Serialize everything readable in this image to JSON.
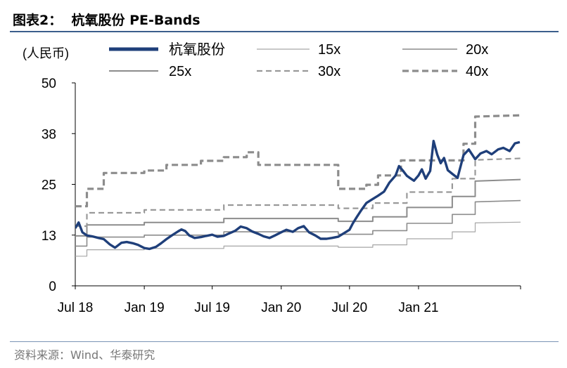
{
  "header": {
    "title": "图表2：  杭氧股份 PE-Bands"
  },
  "footer": {
    "source": "资料来源：Wind、华泰研究"
  },
  "chart_data": {
    "type": "line",
    "ylabel": "(人民币)",
    "ylim": [
      0,
      50
    ],
    "yticks": [
      "0",
      "13",
      "25",
      "38",
      "50"
    ],
    "ytick_values": [
      0,
      12.5,
      25,
      37.5,
      50
    ],
    "xlim": [
      "2018-07-01",
      "2021-09-30"
    ],
    "xticks": [
      "Jul 18",
      "Jan 19",
      "Jul 19",
      "Jan 20",
      "Jul 20",
      "Jan 21"
    ],
    "xtick_dates": [
      "2018-07-01",
      "2019-01-01",
      "2019-07-01",
      "2020-01-01",
      "2020-07-01",
      "2021-01-01"
    ],
    "legend": [
      "杭氧股份",
      "15x",
      "20x",
      "25x",
      "30x",
      "40x"
    ],
    "legend_placement": "top",
    "grid": false,
    "series": [
      {
        "name": "杭氧股份",
        "style": "thick-solid",
        "color": "#1f3f7a",
        "points": [
          [
            "2018-07-01",
            14.2
          ],
          [
            "2018-07-10",
            15.6
          ],
          [
            "2018-07-20",
            13.2
          ],
          [
            "2018-08-01",
            12.4
          ],
          [
            "2018-08-15",
            12.2
          ],
          [
            "2018-09-01",
            11.8
          ],
          [
            "2018-09-15",
            11.5
          ],
          [
            "2018-10-01",
            10.2
          ],
          [
            "2018-10-15",
            9.4
          ],
          [
            "2018-11-01",
            10.6
          ],
          [
            "2018-11-15",
            10.8
          ],
          [
            "2018-12-01",
            10.5
          ],
          [
            "2018-12-15",
            10.1
          ],
          [
            "2019-01-01",
            9.3
          ],
          [
            "2019-01-15",
            9.1
          ],
          [
            "2019-02-01",
            9.6
          ],
          [
            "2019-02-15",
            10.5
          ],
          [
            "2019-03-01",
            11.5
          ],
          [
            "2019-03-15",
            12.4
          ],
          [
            "2019-04-01",
            13.4
          ],
          [
            "2019-04-10",
            13.9
          ],
          [
            "2019-04-20",
            13.5
          ],
          [
            "2019-05-01",
            12.4
          ],
          [
            "2019-05-15",
            11.8
          ],
          [
            "2019-06-01",
            12.0
          ],
          [
            "2019-06-15",
            12.3
          ],
          [
            "2019-07-01",
            12.6
          ],
          [
            "2019-07-15",
            12.1
          ],
          [
            "2019-08-01",
            12.3
          ],
          [
            "2019-08-15",
            12.9
          ],
          [
            "2019-09-01",
            13.6
          ],
          [
            "2019-09-15",
            14.6
          ],
          [
            "2019-10-01",
            14.2
          ],
          [
            "2019-10-15",
            13.4
          ],
          [
            "2019-11-01",
            12.8
          ],
          [
            "2019-11-15",
            12.2
          ],
          [
            "2019-12-01",
            11.8
          ],
          [
            "2019-12-15",
            12.4
          ],
          [
            "2020-01-01",
            13.2
          ],
          [
            "2020-01-15",
            13.8
          ],
          [
            "2020-02-01",
            13.3
          ],
          [
            "2020-02-15",
            14.2
          ],
          [
            "2020-03-01",
            14.7
          ],
          [
            "2020-03-15",
            13.2
          ],
          [
            "2020-04-01",
            12.4
          ],
          [
            "2020-04-15",
            11.6
          ],
          [
            "2020-05-01",
            11.6
          ],
          [
            "2020-05-15",
            11.8
          ],
          [
            "2020-06-01",
            12.1
          ],
          [
            "2020-06-15",
            12.9
          ],
          [
            "2020-07-01",
            13.8
          ],
          [
            "2020-07-10",
            15.4
          ],
          [
            "2020-07-20",
            16.9
          ],
          [
            "2020-08-01",
            18.6
          ],
          [
            "2020-08-15",
            20.4
          ],
          [
            "2020-09-01",
            21.4
          ],
          [
            "2020-09-15",
            22.2
          ],
          [
            "2020-10-01",
            23.2
          ],
          [
            "2020-10-15",
            25.4
          ],
          [
            "2020-11-01",
            27.2
          ],
          [
            "2020-11-10",
            29.5
          ],
          [
            "2020-11-20",
            28.4
          ],
          [
            "2020-12-01",
            27.1
          ],
          [
            "2020-12-10",
            26.5
          ],
          [
            "2020-12-20",
            25.9
          ],
          [
            "2021-01-01",
            27.2
          ],
          [
            "2021-01-10",
            28.7
          ],
          [
            "2021-01-20",
            26.4
          ],
          [
            "2021-02-01",
            28.3
          ],
          [
            "2021-02-10",
            35.7
          ],
          [
            "2021-02-20",
            32.3
          ],
          [
            "2021-03-01",
            30.2
          ],
          [
            "2021-03-10",
            31.5
          ],
          [
            "2021-03-20",
            28.5
          ],
          [
            "2021-04-01",
            27.6
          ],
          [
            "2021-04-15",
            26.6
          ],
          [
            "2021-05-01",
            32.2
          ],
          [
            "2021-05-15",
            33.6
          ],
          [
            "2021-06-01",
            31.2
          ],
          [
            "2021-06-15",
            32.6
          ],
          [
            "2021-07-01",
            33.2
          ],
          [
            "2021-07-15",
            32.4
          ],
          [
            "2021-08-01",
            33.6
          ],
          [
            "2021-08-15",
            34.0
          ],
          [
            "2021-09-01",
            33.2
          ],
          [
            "2021-09-15",
            35.1
          ],
          [
            "2021-09-28",
            35.4
          ]
        ]
      },
      {
        "name": "15x",
        "style": "thin-solid",
        "color": "#a6a6a6",
        "points": [
          [
            "2018-07-01",
            7.3
          ],
          [
            "2018-08-01",
            7.3
          ],
          [
            "2018-08-01",
            8.9
          ],
          [
            "2019-01-01",
            8.9
          ],
          [
            "2019-01-01",
            9.2
          ],
          [
            "2019-08-01",
            9.2
          ],
          [
            "2019-08-01",
            9.8
          ],
          [
            "2020-06-01",
            9.8
          ],
          [
            "2020-06-01",
            9.5
          ],
          [
            "2020-09-01",
            9.5
          ],
          [
            "2020-09-01",
            10.1
          ],
          [
            "2020-12-01",
            10.1
          ],
          [
            "2020-12-01",
            11.6
          ],
          [
            "2021-04-01",
            11.6
          ],
          [
            "2021-04-01",
            13.3
          ],
          [
            "2021-06-01",
            13.3
          ],
          [
            "2021-06-01",
            15.5
          ],
          [
            "2021-09-30",
            15.7
          ]
        ]
      },
      {
        "name": "20x",
        "style": "medium-solid",
        "color": "#8c8c8c",
        "points": [
          [
            "2018-07-01",
            9.8
          ],
          [
            "2018-08-01",
            9.8
          ],
          [
            "2018-08-01",
            12.0
          ],
          [
            "2019-01-01",
            12.0
          ],
          [
            "2019-01-01",
            12.5
          ],
          [
            "2019-08-01",
            12.5
          ],
          [
            "2019-08-01",
            13.3
          ],
          [
            "2020-06-01",
            13.3
          ],
          [
            "2020-06-01",
            12.7
          ],
          [
            "2020-09-01",
            12.7
          ],
          [
            "2020-09-01",
            13.6
          ],
          [
            "2020-12-01",
            13.6
          ],
          [
            "2020-12-01",
            15.4
          ],
          [
            "2021-04-01",
            15.4
          ],
          [
            "2021-04-01",
            17.6
          ],
          [
            "2021-06-01",
            17.6
          ],
          [
            "2021-06-01",
            20.7
          ],
          [
            "2021-09-30",
            21.0
          ]
        ]
      },
      {
        "name": "25x",
        "style": "thick-solid",
        "color": "#8c8c8c",
        "points": [
          [
            "2018-07-01",
            12.3
          ],
          [
            "2018-08-01",
            12.3
          ],
          [
            "2018-08-01",
            15.0
          ],
          [
            "2019-01-01",
            15.0
          ],
          [
            "2019-01-01",
            15.6
          ],
          [
            "2019-08-01",
            15.6
          ],
          [
            "2019-08-01",
            16.6
          ],
          [
            "2020-06-01",
            16.6
          ],
          [
            "2020-06-01",
            15.9
          ],
          [
            "2020-09-01",
            15.9
          ],
          [
            "2020-09-01",
            17.0
          ],
          [
            "2020-12-01",
            17.0
          ],
          [
            "2020-12-01",
            19.3
          ],
          [
            "2021-04-01",
            19.3
          ],
          [
            "2021-04-01",
            22.0
          ],
          [
            "2021-06-01",
            22.0
          ],
          [
            "2021-06-01",
            25.8
          ],
          [
            "2021-09-30",
            26.2
          ]
        ]
      },
      {
        "name": "30x",
        "style": "dashed",
        "color": "#999999",
        "points": [
          [
            "2018-07-01",
            14.7
          ],
          [
            "2018-08-01",
            14.7
          ],
          [
            "2018-08-01",
            18.0
          ],
          [
            "2019-01-01",
            18.0
          ],
          [
            "2019-01-01",
            18.7
          ],
          [
            "2019-08-01",
            18.7
          ],
          [
            "2019-08-01",
            19.9
          ],
          [
            "2020-06-01",
            19.9
          ],
          [
            "2020-06-01",
            19.1
          ],
          [
            "2020-09-01",
            19.1
          ],
          [
            "2020-09-01",
            20.4
          ],
          [
            "2020-12-01",
            20.4
          ],
          [
            "2020-12-01",
            23.1
          ],
          [
            "2021-04-01",
            23.1
          ],
          [
            "2021-04-01",
            26.4
          ],
          [
            "2021-06-01",
            26.4
          ],
          [
            "2021-06-01",
            31.0
          ],
          [
            "2021-09-30",
            31.4
          ]
        ]
      },
      {
        "name": "40x",
        "style": "thick-dashed",
        "color": "#8c8c8c",
        "points": [
          [
            "2018-07-01",
            19.6
          ],
          [
            "2018-08-01",
            19.6
          ],
          [
            "2018-08-01",
            23.9
          ],
          [
            "2018-09-15",
            23.9
          ],
          [
            "2018-09-15",
            27.8
          ],
          [
            "2019-01-01",
            27.8
          ],
          [
            "2019-01-01",
            28.4
          ],
          [
            "2019-03-01",
            28.4
          ],
          [
            "2019-03-01",
            29.8
          ],
          [
            "2019-06-01",
            29.8
          ],
          [
            "2019-06-01",
            30.8
          ],
          [
            "2019-08-01",
            30.8
          ],
          [
            "2019-08-01",
            31.7
          ],
          [
            "2019-10-01",
            31.7
          ],
          [
            "2019-10-01",
            32.9
          ],
          [
            "2019-11-01",
            32.9
          ],
          [
            "2019-11-01",
            29.8
          ],
          [
            "2020-06-01",
            29.8
          ],
          [
            "2020-06-01",
            23.9
          ],
          [
            "2020-08-15",
            23.9
          ],
          [
            "2020-08-15",
            24.9
          ],
          [
            "2020-09-15",
            24.9
          ],
          [
            "2020-09-15",
            27.2
          ],
          [
            "2020-11-15",
            27.2
          ],
          [
            "2020-11-15",
            30.9
          ],
          [
            "2021-05-01",
            30.9
          ],
          [
            "2021-05-01",
            35.0
          ],
          [
            "2021-06-01",
            35.0
          ],
          [
            "2021-06-01",
            41.7
          ],
          [
            "2021-09-30",
            42.0
          ]
        ]
      }
    ]
  }
}
